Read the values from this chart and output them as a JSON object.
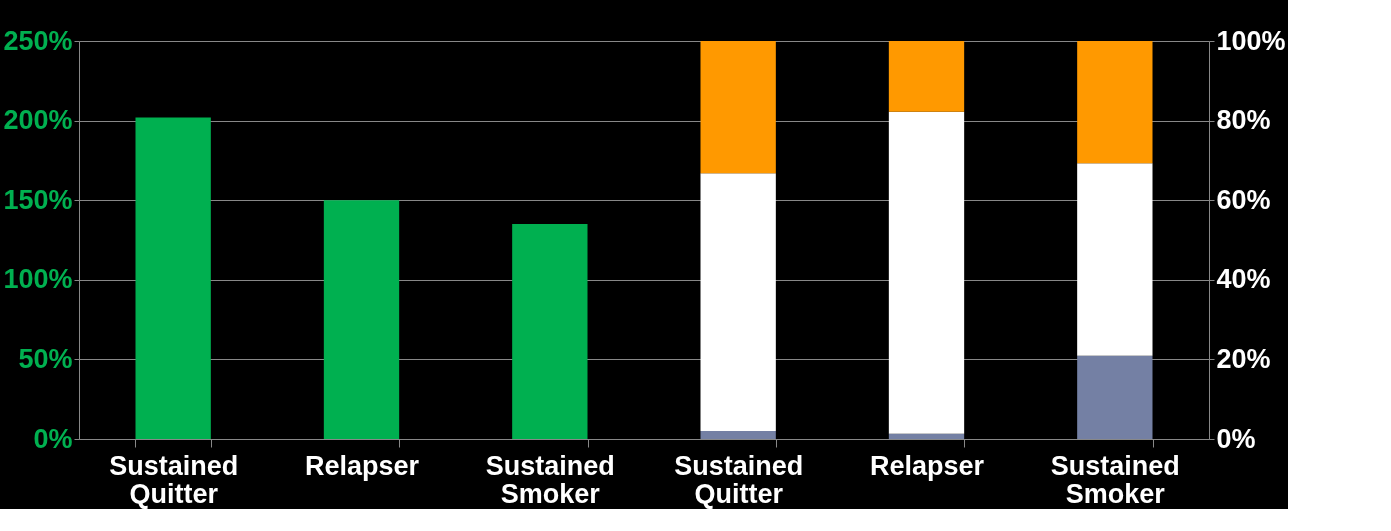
{
  "chart_data": {
    "type": "bar",
    "categories": [
      "Sustained Quitter",
      "Relapser",
      "Sustained Smoker",
      "Sustained Quitter",
      "Relapser",
      "Sustained Smoker"
    ],
    "series": [
      {
        "color": "#00b050",
        "values": [
          202,
          150,
          135,
          null,
          null,
          null
        ]
      },
      {
        "color": "#7480a4",
        "axis": "y2",
        "values": [
          null,
          null,
          null,
          2,
          1.3,
          20.9
        ]
      },
      {
        "color": "#ffffff",
        "axis": "y2",
        "values": [
          null,
          null,
          null,
          64.8,
          80.9,
          48.4
        ]
      },
      {
        "color": "#ff9900",
        "axis": "y2",
        "values": [
          null,
          null,
          null,
          33.2,
          17.8,
          30.7
        ]
      }
    ],
    "stacked": true,
    "grid": "y",
    "ylim": [
      0,
      250
    ],
    "yticks": [
      {
        "value": 0,
        "label": "0%"
      },
      {
        "value": 50,
        "label": "50%"
      },
      {
        "value": 100,
        "label": "100%"
      },
      {
        "value": 150,
        "label": "150%"
      },
      {
        "value": 200,
        "label": "200%"
      },
      {
        "value": 250,
        "label": "250%"
      }
    ],
    "y2lim": [
      0,
      100
    ],
    "y2ticks": [
      {
        "value": 0,
        "label": "0%"
      },
      {
        "value": 20,
        "label": "20%"
      },
      {
        "value": 40,
        "label": "40%"
      },
      {
        "value": 60,
        "label": "60%"
      },
      {
        "value": 80,
        "label": "80%"
      },
      {
        "value": 100,
        "label": "100%"
      }
    ]
  }
}
